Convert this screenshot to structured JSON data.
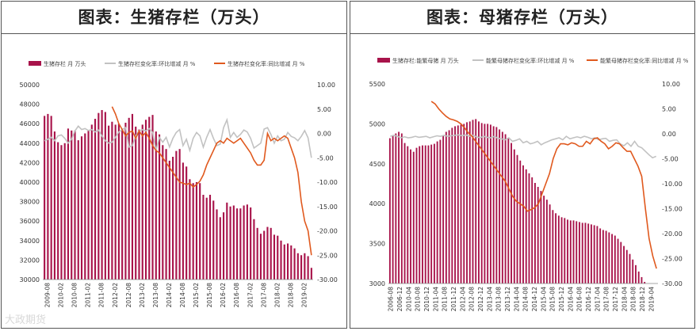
{
  "watermark": "大政期货",
  "chart_data": [
    {
      "type": "bar+line",
      "title": "图表：生猪存栏（万头）",
      "legend": {
        "bar": "生猪存栏 月 万头",
        "grey": "生猪存栏变化率:环比增减 月 %",
        "orange": "生猪存栏变化率:同比增减 月 %"
      },
      "colors": {
        "bar": "#a8134a",
        "grey": "#c2c2c2",
        "orange": "#e0591e"
      },
      "yleft_ticks": [
        "50000",
        "48000",
        "46000",
        "44000",
        "42000",
        "40000",
        "38000",
        "36000",
        "34000",
        "32000",
        "30000"
      ],
      "yleft_range": [
        30000,
        50000
      ],
      "yright_ticks": [
        "10.00",
        "5.00",
        "0.00",
        "-5.00",
        "-10.00",
        "-15.00",
        "-20.00",
        "-25.00",
        "-30.00"
      ],
      "yright_range": [
        -30,
        10
      ],
      "xticks": [
        "2009-08",
        "2010-02",
        "2010-08",
        "2011-02",
        "2011-08",
        "2012-02",
        "2012-08",
        "2013-02",
        "2013-08",
        "2014-02",
        "2014-08",
        "2015-02",
        "2015-08",
        "2016-02",
        "2016-08",
        "2017-02",
        "2017-08",
        "2018-02",
        "2018-08",
        "2019-02"
      ],
      "bars": [
        46800,
        47000,
        46800,
        45200,
        44100,
        43800,
        44000,
        45500,
        45300,
        45300,
        44300,
        44700,
        45000,
        45300,
        45900,
        46500,
        47100,
        47400,
        47200,
        45800,
        46200,
        45900,
        46000,
        45500,
        46100,
        46600,
        47000,
        45700,
        45400,
        45900,
        46400,
        46700,
        46900,
        45200,
        44900,
        43800,
        43400,
        42200,
        42600,
        43200,
        43400,
        42000,
        41600,
        40300,
        39900,
        40000,
        39900,
        38700,
        38400,
        38700,
        38100,
        37200,
        36400,
        36900,
        37900,
        37500,
        37600,
        37300,
        37300,
        37600,
        37700,
        37400,
        36200,
        35300,
        34700,
        35000,
        35400,
        35300,
        34600,
        34500,
        34000,
        33600,
        33700,
        33500,
        33200,
        32700,
        32500,
        32700,
        32400,
        31200
      ],
      "grey_line": [
        -1.5,
        -1.2,
        -0.8,
        -1.5,
        -0.5,
        -0.3,
        -1.0,
        -2.0,
        -1.2,
        0.5,
        1.5,
        0.8,
        1.0,
        0.6,
        0.8,
        0.3,
        0.7,
        -0.5,
        -1.5,
        -2.0,
        -1.8,
        -0.8,
        0.3,
        0.8,
        1.2,
        -2.8,
        -2.5,
        -0.5,
        0.5,
        0.8,
        0.5,
        1.0,
        0.2,
        -3.5,
        -0.8,
        -1.8,
        -0.8,
        -2.8,
        -1.0,
        0.2,
        0.8,
        -2.5,
        -1.2,
        -3.5,
        -1.0,
        0.2,
        -0.5,
        -2.8,
        -0.8,
        0.8,
        -1.0,
        -2.5,
        -2.2,
        1.2,
        2.8,
        -0.8,
        0.2,
        -0.8,
        -0.2,
        0.7,
        0.3,
        -1.0,
        -3.0,
        -2.5,
        -2.0,
        0.9,
        1.2,
        -0.2,
        -2.0,
        -0.5,
        -1.5,
        -1.2,
        0.2,
        -0.6,
        -0.9,
        -1.5,
        -0.6,
        0.6,
        -0.9,
        -5.0
      ],
      "orange_line": [
        5.5,
        4.0,
        2.0,
        0.8,
        -0.5,
        0.2,
        0.5,
        -1.0,
        0.5,
        -0.5,
        0.2,
        -1.0,
        -2.5,
        -3.5,
        -4.0,
        -5.0,
        -6.0,
        -7.0,
        -8.0,
        -9.0,
        -10.0,
        -10.2,
        -10.5,
        -10.2,
        -11.0,
        -10.5,
        -9.8,
        -8.5,
        -6.5,
        -5.0,
        -3.5,
        -2.0,
        -1.5,
        -2.0,
        -1.0,
        -1.5,
        -2.0,
        -1.5,
        -1.0,
        -2.0,
        -3.0,
        -4.0,
        -5.5,
        -6.5,
        -6.5,
        -5.5,
        0.0,
        -1.5,
        -1.0,
        -1.5,
        -1.0,
        -0.5,
        -1.0,
        -3.0,
        -5.0,
        -8.0,
        -14.0,
        -18.0,
        -20.0,
        -25.0
      ],
      "orange_start_index": 20
    },
    {
      "type": "bar+line",
      "title": "图表：母猪存栏（万头）",
      "legend": {
        "bar": "生猪存栏:能繁母猪 月 万头",
        "grey": "能繁母猪存栏变化率:环比增减 月 %",
        "orange": "能繁母猪存栏变化率:同比增减 月 %"
      },
      "colors": {
        "bar": "#a8134a",
        "grey": "#c2c2c2",
        "orange": "#e0591e"
      },
      "yleft_ticks": [
        "5500",
        "5000",
        "4500",
        "4000",
        "3500",
        "3000"
      ],
      "yleft_range": [
        3000,
        5500
      ],
      "yright_ticks": [
        "10.00",
        "5.00",
        "0.00",
        "-5.00",
        "-10.00",
        "-15.00",
        "-20.00",
        "-25.00",
        "-30.00"
      ],
      "yright_range": [
        -30,
        10
      ],
      "xticks": [
        "2006-08",
        "2006-12",
        "2010-04",
        "2010-08",
        "2010-12",
        "2011-04",
        "2011-08",
        "2011-12",
        "2012-04",
        "2012-08",
        "2012-12",
        "2013-04",
        "2013-08",
        "2013-12",
        "2014-04",
        "2014-08",
        "2014-12",
        "2015-04",
        "2015-08",
        "2015-12",
        "2016-04",
        "2016-08",
        "2016-12",
        "2017-04",
        "2017-08",
        "2017-12",
        "2018-04",
        "2018-08",
        "2018-12",
        "2019-04"
      ],
      "bars": [
        4820,
        4850,
        4880,
        4900,
        4880,
        4760,
        4720,
        4680,
        4650,
        4700,
        4720,
        4730,
        4730,
        4730,
        4740,
        4750,
        4780,
        4800,
        4850,
        4900,
        4920,
        4950,
        4970,
        4980,
        4990,
        5000,
        5020,
        5030,
        5050,
        5060,
        5030,
        5010,
        5000,
        5000,
        4990,
        4970,
        4960,
        4930,
        4900,
        4870,
        4820,
        4760,
        4680,
        4610,
        4540,
        4480,
        4430,
        4380,
        4330,
        4260,
        4210,
        4160,
        4100,
        4050,
        3990,
        3920,
        3880,
        3850,
        3830,
        3820,
        3800,
        3790,
        3790,
        3780,
        3770,
        3760,
        3760,
        3750,
        3740,
        3730,
        3720,
        3690,
        3670,
        3660,
        3640,
        3620,
        3600,
        3560,
        3520,
        3470,
        3420,
        3370,
        3300,
        3230,
        3150,
        3080,
        3020,
        3000,
        3000,
        3000,
        3000
      ],
      "grey_line": [
        -0.5,
        -0.3,
        -0.5,
        -0.8,
        -0.6,
        -0.8,
        -0.7,
        -0.5,
        -0.7,
        -0.6,
        -0.5,
        -0.8,
        -0.6,
        -0.4,
        -0.5,
        -0.3,
        -0.5,
        -0.4,
        -0.3,
        -0.2,
        -0.4,
        -0.2,
        -0.5,
        -0.3,
        -0.6,
        -0.8,
        -0.5,
        -0.7,
        -0.8,
        -0.5,
        -0.9,
        -1.0,
        -1.2,
        -0.8,
        -1.5,
        -1.3,
        -1.0,
        -1.8,
        -1.5,
        -2.0,
        -1.8,
        -1.5,
        -2.2,
        -1.8,
        -1.5,
        -1.2,
        -1.0,
        -0.8,
        -1.2,
        -0.5,
        -1.0,
        -0.8,
        -0.6,
        -0.8,
        -0.5,
        -0.7,
        -1.0,
        -0.8,
        -1.2,
        -1.0,
        -0.9,
        -1.5,
        -1.3,
        -1.2,
        -2.0,
        -2.4,
        -1.8,
        -2.5,
        -1.5,
        -2.5,
        -2.8,
        -3.5,
        -4.2,
        -4.8,
        -4.5
      ],
      "orange_line": [
        6.5,
        6.0,
        5.0,
        4.2,
        3.5,
        3.0,
        2.8,
        2.5,
        2.0,
        1.2,
        0.2,
        -0.5,
        -1.5,
        -2.5,
        -3.5,
        -4.5,
        -5.5,
        -6.5,
        -7.5,
        -8.5,
        -9.5,
        -11.0,
        -12.5,
        -13.5,
        -14.0,
        -14.5,
        -15.5,
        -15.2,
        -14.8,
        -14.0,
        -12.0,
        -10.0,
        -8.0,
        -5.0,
        -3.0,
        -2.0,
        -2.0,
        -2.2,
        -1.8,
        -2.0,
        -2.5,
        -2.5,
        -1.5,
        -2.0,
        -1.0,
        -0.8,
        -1.5,
        -2.0,
        -3.0,
        -2.5,
        -1.8,
        -2.0,
        -2.8,
        -3.5,
        -3.5,
        -5.0,
        -6.5,
        -8.5,
        -15.0,
        -21.0,
        -24.5,
        -27.0
      ],
      "orange_start_index": 14
    }
  ]
}
